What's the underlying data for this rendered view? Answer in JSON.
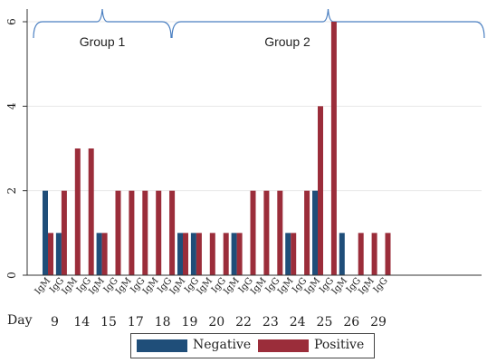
{
  "chart_data": {
    "type": "bar",
    "x_title": "Day",
    "ylim": [
      0,
      6
    ],
    "y_ticks": [
      0,
      2,
      4,
      6
    ],
    "grid": true,
    "legend_position": "bottom-center",
    "colors": {
      "negative": "#1f4e79",
      "positive": "#9b2d3a",
      "bracket": "#4a7fc1",
      "grid": "#e8e8e8"
    },
    "series": [
      {
        "name": "Negative",
        "color": "#1f4e79"
      },
      {
        "name": "Positive",
        "color": "#9b2d3a"
      }
    ],
    "groups": [
      {
        "label": "Group 1",
        "span_days": [
          "9",
          "17"
        ]
      },
      {
        "label": "Group 2",
        "span_days": [
          "18",
          "29"
        ]
      }
    ],
    "days": [
      {
        "day": "9",
        "bars": [
          {
            "isotype": "IgM",
            "negative": 2,
            "positive": 1
          },
          {
            "isotype": "IgG",
            "negative": 1,
            "positive": 2
          }
        ]
      },
      {
        "day": "14",
        "bars": [
          {
            "isotype": "IgM",
            "negative": 0,
            "positive": 3
          },
          {
            "isotype": "IgG",
            "negative": 0,
            "positive": 3
          }
        ]
      },
      {
        "day": "15",
        "bars": [
          {
            "isotype": "IgM",
            "negative": 1,
            "positive": 1
          },
          {
            "isotype": "IgG",
            "negative": 0,
            "positive": 2
          }
        ]
      },
      {
        "day": "17",
        "bars": [
          {
            "isotype": "IgM",
            "negative": 0,
            "positive": 2
          },
          {
            "isotype": "IgG",
            "negative": 0,
            "positive": 2
          }
        ]
      },
      {
        "day": "18",
        "bars": [
          {
            "isotype": "IgM",
            "negative": 0,
            "positive": 2
          },
          {
            "isotype": "IgG",
            "negative": 0,
            "positive": 2
          }
        ]
      },
      {
        "day": "19",
        "bars": [
          {
            "isotype": "IgM",
            "negative": 1,
            "positive": 1
          },
          {
            "isotype": "IgG",
            "negative": 1,
            "positive": 1
          }
        ]
      },
      {
        "day": "20",
        "bars": [
          {
            "isotype": "IgM",
            "negative": 0,
            "positive": 1
          },
          {
            "isotype": "IgG",
            "negative": 0,
            "positive": 1
          }
        ]
      },
      {
        "day": "22",
        "bars": [
          {
            "isotype": "IgM",
            "negative": 1,
            "positive": 1
          },
          {
            "isotype": "IgG",
            "negative": 0,
            "positive": 2
          }
        ]
      },
      {
        "day": "23",
        "bars": [
          {
            "isotype": "IgM",
            "negative": 0,
            "positive": 2
          },
          {
            "isotype": "IgG",
            "negative": 0,
            "positive": 2
          }
        ]
      },
      {
        "day": "24",
        "bars": [
          {
            "isotype": "IgM",
            "negative": 1,
            "positive": 1
          },
          {
            "isotype": "IgG",
            "negative": 0,
            "positive": 2
          }
        ]
      },
      {
        "day": "25",
        "bars": [
          {
            "isotype": "IgM",
            "negative": 2,
            "positive": 4
          },
          {
            "isotype": "IgG",
            "negative": 0,
            "positive": 6
          }
        ]
      },
      {
        "day": "26",
        "bars": [
          {
            "isotype": "IgM",
            "negative": 1,
            "positive": 0
          },
          {
            "isotype": "IgG",
            "negative": 0,
            "positive": 1
          }
        ]
      },
      {
        "day": "29",
        "bars": [
          {
            "isotype": "IgM",
            "negative": 0,
            "positive": 1
          },
          {
            "isotype": "IgG",
            "negative": 0,
            "positive": 1
          }
        ]
      }
    ]
  }
}
